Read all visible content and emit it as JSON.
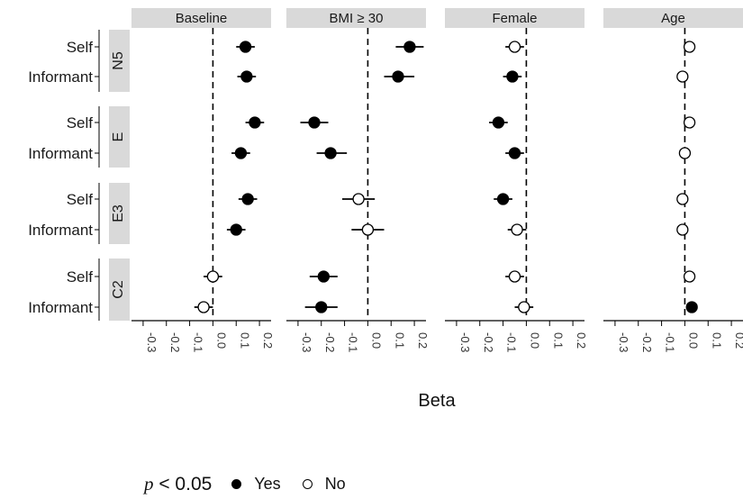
{
  "chart_data": {
    "type": "scatter",
    "subtype": "faceted forest plot (point estimate with interval)",
    "facets": [
      "Baseline",
      "BMI ≥ 30",
      "Female",
      "Age"
    ],
    "groups": [
      "N5",
      "E",
      "E3",
      "C2"
    ],
    "rows": [
      "Self",
      "Informant"
    ],
    "xlabel": "Beta",
    "xlim": [
      -0.35,
      0.25
    ],
    "xticks": [
      -0.3,
      -0.2,
      -0.1,
      0.0,
      0.1,
      0.2
    ],
    "xtick_labels": [
      "-0.3",
      "-0.2",
      "-0.1",
      "0.0",
      "0.1",
      "0.2"
    ],
    "reference_line": 0.0,
    "legend": {
      "title_var": "p",
      "title_rest": " < 0.05",
      "placement": "bottom",
      "yes_label": "Yes",
      "no_label": "No"
    },
    "colors": {
      "significant": "#000000",
      "nonsignificant": "#ffffff",
      "strip": "#d9d9d9"
    },
    "points": [
      {
        "facet": "Baseline",
        "group": "N5",
        "row": "Self",
        "beta": 0.14,
        "lo": 0.1,
        "hi": 0.18,
        "sig": true
      },
      {
        "facet": "Baseline",
        "group": "N5",
        "row": "Informant",
        "beta": 0.145,
        "lo": 0.105,
        "hi": 0.185,
        "sig": true
      },
      {
        "facet": "Baseline",
        "group": "E",
        "row": "Self",
        "beta": 0.18,
        "lo": 0.14,
        "hi": 0.22,
        "sig": true
      },
      {
        "facet": "Baseline",
        "group": "E",
        "row": "Informant",
        "beta": 0.12,
        "lo": 0.08,
        "hi": 0.16,
        "sig": true
      },
      {
        "facet": "Baseline",
        "group": "E3",
        "row": "Self",
        "beta": 0.15,
        "lo": 0.11,
        "hi": 0.19,
        "sig": true
      },
      {
        "facet": "Baseline",
        "group": "E3",
        "row": "Informant",
        "beta": 0.1,
        "lo": 0.06,
        "hi": 0.14,
        "sig": true
      },
      {
        "facet": "Baseline",
        "group": "C2",
        "row": "Self",
        "beta": 0.0,
        "lo": -0.04,
        "hi": 0.04,
        "sig": false
      },
      {
        "facet": "Baseline",
        "group": "C2",
        "row": "Informant",
        "beta": -0.04,
        "lo": -0.08,
        "hi": 0.0,
        "sig": false
      },
      {
        "facet": "BMI ≥ 30",
        "group": "N5",
        "row": "Self",
        "beta": 0.18,
        "lo": 0.12,
        "hi": 0.24,
        "sig": true
      },
      {
        "facet": "BMI ≥ 30",
        "group": "N5",
        "row": "Informant",
        "beta": 0.13,
        "lo": 0.07,
        "hi": 0.2,
        "sig": true
      },
      {
        "facet": "BMI ≥ 30",
        "group": "E",
        "row": "Self",
        "beta": -0.23,
        "lo": -0.29,
        "hi": -0.17,
        "sig": true
      },
      {
        "facet": "BMI ≥ 30",
        "group": "E",
        "row": "Informant",
        "beta": -0.16,
        "lo": -0.22,
        "hi": -0.09,
        "sig": true
      },
      {
        "facet": "BMI ≥ 30",
        "group": "E3",
        "row": "Self",
        "beta": -0.04,
        "lo": -0.11,
        "hi": 0.03,
        "sig": false
      },
      {
        "facet": "BMI ≥ 30",
        "group": "E3",
        "row": "Informant",
        "beta": 0.0,
        "lo": -0.07,
        "hi": 0.07,
        "sig": false
      },
      {
        "facet": "BMI ≥ 30",
        "group": "C2",
        "row": "Self",
        "beta": -0.19,
        "lo": -0.25,
        "hi": -0.13,
        "sig": true
      },
      {
        "facet": "BMI ≥ 30",
        "group": "C2",
        "row": "Informant",
        "beta": -0.2,
        "lo": -0.27,
        "hi": -0.13,
        "sig": true
      },
      {
        "facet": "Female",
        "group": "N5",
        "row": "Self",
        "beta": -0.05,
        "lo": -0.09,
        "hi": -0.01,
        "sig": false
      },
      {
        "facet": "Female",
        "group": "N5",
        "row": "Informant",
        "beta": -0.06,
        "lo": -0.1,
        "hi": -0.02,
        "sig": true
      },
      {
        "facet": "Female",
        "group": "E",
        "row": "Self",
        "beta": -0.12,
        "lo": -0.16,
        "hi": -0.08,
        "sig": true
      },
      {
        "facet": "Female",
        "group": "E",
        "row": "Informant",
        "beta": -0.05,
        "lo": -0.09,
        "hi": -0.01,
        "sig": true
      },
      {
        "facet": "Female",
        "group": "E3",
        "row": "Self",
        "beta": -0.1,
        "lo": -0.14,
        "hi": -0.06,
        "sig": true
      },
      {
        "facet": "Female",
        "group": "E3",
        "row": "Informant",
        "beta": -0.04,
        "lo": -0.08,
        "hi": 0.0,
        "sig": false
      },
      {
        "facet": "Female",
        "group": "C2",
        "row": "Self",
        "beta": -0.05,
        "lo": -0.09,
        "hi": -0.01,
        "sig": false
      },
      {
        "facet": "Female",
        "group": "C2",
        "row": "Informant",
        "beta": -0.01,
        "lo": -0.05,
        "hi": 0.03,
        "sig": false
      },
      {
        "facet": "Age",
        "group": "N5",
        "row": "Self",
        "beta": 0.02,
        "lo": 0.01,
        "hi": 0.03,
        "sig": false
      },
      {
        "facet": "Age",
        "group": "N5",
        "row": "Informant",
        "beta": -0.01,
        "lo": -0.02,
        "hi": 0.0,
        "sig": false
      },
      {
        "facet": "Age",
        "group": "E",
        "row": "Self",
        "beta": 0.02,
        "lo": 0.01,
        "hi": 0.03,
        "sig": false
      },
      {
        "facet": "Age",
        "group": "E",
        "row": "Informant",
        "beta": 0.0,
        "lo": -0.01,
        "hi": 0.01,
        "sig": false
      },
      {
        "facet": "Age",
        "group": "E3",
        "row": "Self",
        "beta": -0.01,
        "lo": -0.02,
        "hi": 0.0,
        "sig": false
      },
      {
        "facet": "Age",
        "group": "E3",
        "row": "Informant",
        "beta": -0.01,
        "lo": -0.02,
        "hi": 0.0,
        "sig": false
      },
      {
        "facet": "Age",
        "group": "C2",
        "row": "Self",
        "beta": 0.02,
        "lo": 0.01,
        "hi": 0.03,
        "sig": false
      },
      {
        "facet": "Age",
        "group": "C2",
        "row": "Informant",
        "beta": 0.03,
        "lo": 0.02,
        "hi": 0.04,
        "sig": true
      }
    ]
  }
}
